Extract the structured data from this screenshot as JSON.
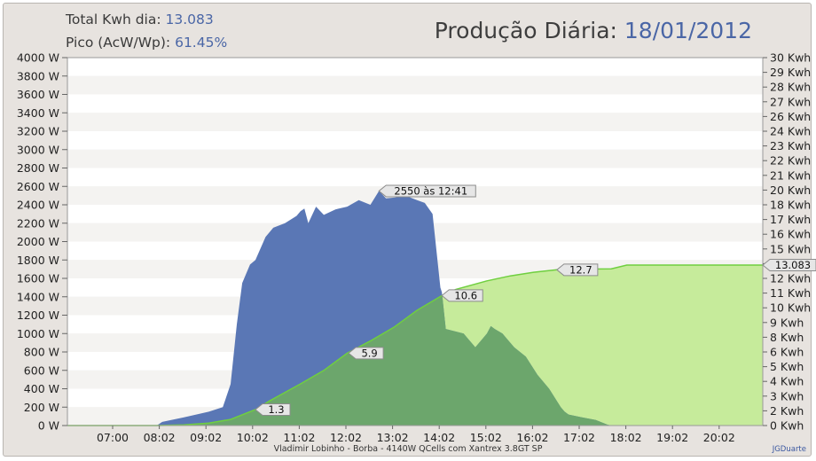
{
  "header": {
    "total_label": "Total Kwh dia:",
    "total_value": "13.083",
    "peak_label": "Pico (AcW/Wp):",
    "peak_value": "61.45%",
    "title_label": "Produção Diária:",
    "title_date": "18/01/2012"
  },
  "footer": {
    "caption": "Vladimir Lobinho  -  Borba  -  4140W QCells com Xantrex 3.8GT SP",
    "credit": "JGDuarte"
  },
  "colors": {
    "power_fill": "#5a77b5",
    "energy_fill": "#c6eb9b",
    "overlap_fill": "#6ca66c",
    "energy_line": "#6fcf3f",
    "band_a": "#ffffff",
    "band_b": "#f4f3f1",
    "plot_border": "#9a9a9a"
  },
  "chart_data": {
    "type": "area",
    "grid": true,
    "x_ticks": [
      "07:00",
      "08:02",
      "09:02",
      "10:02",
      "11:02",
      "12:02",
      "13:02",
      "14:02",
      "15:02",
      "16:02",
      "17:02",
      "18:02",
      "19:02",
      "20:02"
    ],
    "y_left": {
      "min": 0,
      "max": 4000,
      "unit": "W",
      "ticks": [
        "0 W",
        "200 W",
        "400 W",
        "600 W",
        "800 W",
        "1000 W",
        "1200 W",
        "1400 W",
        "1600 W",
        "1800 W",
        "2000 W",
        "2200 W",
        "2400 W",
        "2600 W",
        "2800 W",
        "3000 W",
        "3200 W",
        "3400 W",
        "3600 W",
        "3800 W",
        "4000 W"
      ]
    },
    "y_right": {
      "min": 0,
      "max": 30,
      "unit": "Kwh",
      "ticks": [
        "0 Kwh",
        "2 Kwh",
        "3 Kwh",
        "4 Kwh",
        "5 Kwh",
        "6 Kwh",
        "8 Kwh",
        "9 Kwh",
        "10 Kwh",
        "11 Kwh",
        "12 Kwh",
        "14 Kwh",
        "15 Kwh",
        "16 Kwh",
        "17 Kwh",
        "18 Kwh",
        "20 Kwh",
        "21 Kwh",
        "22 Kwh",
        "23 Kwh",
        "24 Kwh",
        "26 Kwh",
        "27 Kwh",
        "28 Kwh",
        "29 Kwh",
        "30 Kwh"
      ]
    },
    "series": [
      {
        "axis": "left",
        "x": [
          "06:00",
          "07:00",
          "07:55",
          "08:02",
          "08:30",
          "09:02",
          "09:20",
          "09:30",
          "09:38",
          "09:45",
          "09:55",
          "10:02",
          "10:15",
          "10:25",
          "10:40",
          "10:55",
          "11:00",
          "11:05",
          "11:10",
          "11:20",
          "11:30",
          "11:45",
          "12:00",
          "12:15",
          "12:30",
          "12:41",
          "12:50",
          "13:02",
          "13:15",
          "13:30",
          "13:40",
          "13:50",
          "14:00",
          "14:02",
          "14:07",
          "14:30",
          "14:45",
          "15:00",
          "15:05",
          "15:10",
          "15:20",
          "15:35",
          "15:50",
          "16:05",
          "16:20",
          "16:35",
          "16:40",
          "16:45",
          "17:02",
          "17:20",
          "17:35",
          "17:40",
          "18:00",
          "19:00",
          "20:00",
          "20:55"
        ],
        "values": [
          0,
          0,
          0,
          40,
          90,
          150,
          200,
          450,
          1100,
          1550,
          1750,
          1800,
          2050,
          2150,
          2200,
          2280,
          2330,
          2360,
          2200,
          2380,
          2290,
          2350,
          2380,
          2450,
          2400,
          2550,
          2470,
          2480,
          2500,
          2450,
          2420,
          2300,
          1500,
          1450,
          1050,
          1000,
          850,
          1000,
          1080,
          1050,
          1000,
          850,
          750,
          550,
          400,
          200,
          150,
          120,
          90,
          60,
          10,
          0,
          0,
          0,
          0,
          0
        ]
      },
      {
        "axis": "right",
        "x": [
          "06:00",
          "07:55",
          "08:30",
          "09:02",
          "09:30",
          "10:02",
          "10:20",
          "11:00",
          "11:30",
          "12:00",
          "12:30",
          "13:00",
          "13:30",
          "14:02",
          "14:20",
          "15:00",
          "15:30",
          "16:00",
          "16:30",
          "17:00",
          "17:40",
          "18:00",
          "19:00",
          "20:00",
          "20:55"
        ],
        "values": [
          0,
          0,
          0.05,
          0.2,
          0.5,
          1.3,
          2.0,
          3.4,
          4.5,
          5.9,
          6.9,
          8.0,
          9.4,
          10.6,
          11.1,
          11.8,
          12.2,
          12.5,
          12.7,
          12.75,
          12.78,
          13.083,
          13.083,
          13.083,
          13.083
        ]
      }
    ],
    "annotations": [
      {
        "text": "1.3",
        "x": "10:02",
        "y": 1.3,
        "axis": "right"
      },
      {
        "text": "5.9",
        "x": "12:02",
        "y": 5.9,
        "axis": "right"
      },
      {
        "text": "10.6",
        "x": "14:02",
        "y": 10.6,
        "axis": "right"
      },
      {
        "text": "12.7",
        "x": "16:30",
        "y": 12.7,
        "axis": "right"
      },
      {
        "text": "2550 às 12:41",
        "x": "12:41",
        "y": 2550,
        "axis": "left"
      }
    ],
    "end_label": "13.083"
  }
}
